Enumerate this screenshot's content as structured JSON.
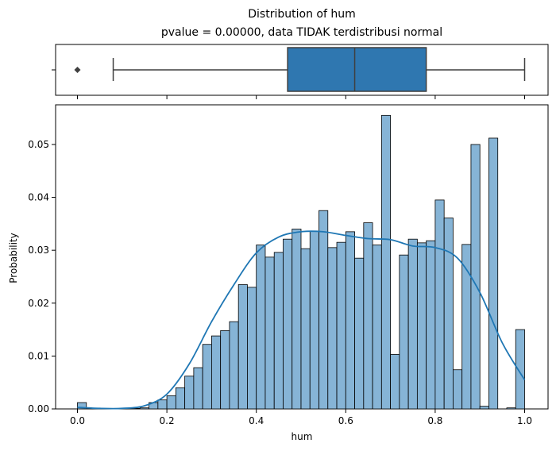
{
  "chart_data": [
    {
      "type": "box",
      "title_line1": "Distribution of hum",
      "title_line2": "pvalue = 0.00000, data TIDAK terdistribusi normal",
      "whisker_low": 0.08,
      "q1": 0.47,
      "median": 0.62,
      "q3": 0.78,
      "whisker_high": 1.0,
      "outliers": [
        0.0
      ],
      "color": "#2f77b0"
    },
    {
      "type": "bar",
      "xlabel": "hum",
      "ylabel": "Probability",
      "xlim": [
        -0.05,
        1.05
      ],
      "ylim": [
        0,
        0.0575
      ],
      "xticks": [
        "0.0",
        "0.2",
        "0.4",
        "0.6",
        "0.8",
        "1.0"
      ],
      "yticks": [
        "0.00",
        "0.01",
        "0.02",
        "0.03",
        "0.04",
        "0.05"
      ],
      "bin_width": 0.02,
      "bin_starts": [
        0.0,
        0.02,
        0.04,
        0.06,
        0.08,
        0.1,
        0.12,
        0.14,
        0.16,
        0.18,
        0.2,
        0.22,
        0.24,
        0.26,
        0.28,
        0.3,
        0.32,
        0.34,
        0.36,
        0.38,
        0.4,
        0.42,
        0.44,
        0.46,
        0.48,
        0.5,
        0.52,
        0.54,
        0.56,
        0.58,
        0.6,
        0.62,
        0.64,
        0.66,
        0.68,
        0.7,
        0.72,
        0.74,
        0.76,
        0.78,
        0.8,
        0.82,
        0.84,
        0.86,
        0.88,
        0.9,
        0.92,
        0.94,
        0.96,
        0.98
      ],
      "values": [
        0.0012,
        0,
        0,
        0,
        0,
        0,
        0.0001,
        0.0002,
        0.0012,
        0.0017,
        0.0025,
        0.004,
        0.0062,
        0.0078,
        0.0122,
        0.0138,
        0.0148,
        0.0165,
        0.0235,
        0.023,
        0.031,
        0.0287,
        0.0296,
        0.0321,
        0.034,
        0.0303,
        0.0336,
        0.0375,
        0.0305,
        0.0315,
        0.0335,
        0.0285,
        0.0352,
        0.031,
        0.0555,
        0.0103,
        0.0291,
        0.0321,
        0.0314,
        0.0318,
        0.0395,
        0.0361,
        0.0074,
        0.0311,
        0.05,
        0.0005,
        0.0512,
        0,
        0.0002,
        0.015
      ],
      "kde_x": [
        0.0,
        0.05,
        0.1,
        0.15,
        0.2,
        0.25,
        0.3,
        0.35,
        0.4,
        0.45,
        0.5,
        0.55,
        0.6,
        0.65,
        0.7,
        0.75,
        0.8,
        0.85,
        0.9,
        0.95,
        1.0
      ],
      "kde_y": [
        0.0003,
        0.0001,
        0.0001,
        0.0006,
        0.0028,
        0.0085,
        0.0165,
        0.0235,
        0.0295,
        0.0325,
        0.0335,
        0.0335,
        0.0328,
        0.0322,
        0.032,
        0.0308,
        0.0305,
        0.0285,
        0.022,
        0.0125,
        0.0055
      ],
      "bar_color": "#86b4d6",
      "line_color": "#1f77b4"
    }
  ]
}
